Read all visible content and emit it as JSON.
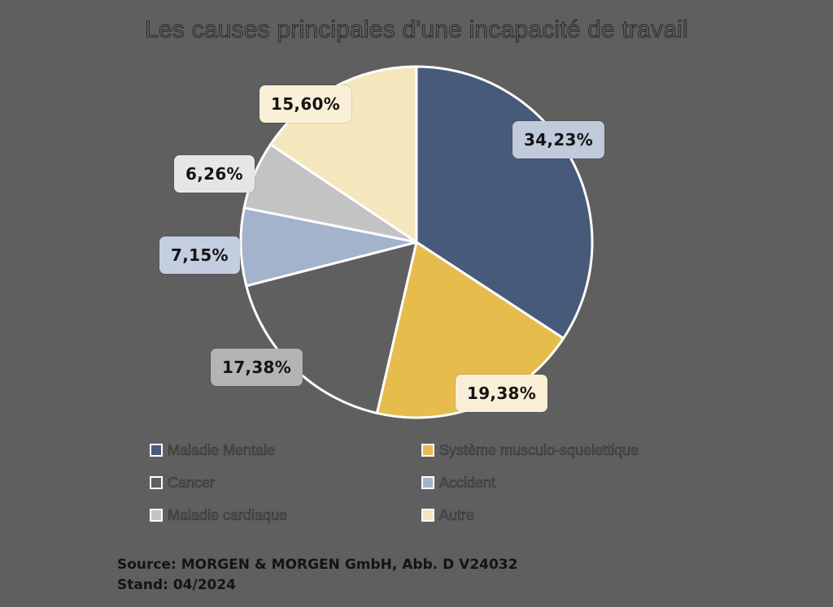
{
  "chart_data": {
    "type": "pie",
    "title": "Les causes principales d'une incapacité de travail",
    "categories": [
      "Maladie Mentale",
      "Système musculo-squelettique",
      "Cancer",
      "Accident",
      "Maladie cardiaque",
      "Autre"
    ],
    "values": [
      34.23,
      19.38,
      17.38,
      7.15,
      6.26,
      15.6
    ],
    "value_labels": [
      "34,23%",
      "19,38%",
      "17,38%",
      "7,15%",
      "6,26%",
      "15,60%"
    ],
    "colors": [
      "#475a7a",
      "#e6bd4c",
      "#5f5f5f",
      "#a3b3cc",
      "#c3c3c3",
      "#f5e6bd"
    ],
    "label_box_colors": [
      "#c0cadb",
      "#faefd6",
      "#b4b4b4",
      "#c3cee0",
      "#e6e6e6",
      "#faf0d8"
    ],
    "start_angle_deg": 90,
    "direction": "clockwise",
    "legend_position": "bottom",
    "xlabel": "",
    "ylabel": ""
  },
  "title": "Les causes principales d'une incapacité de travail",
  "legend": {
    "items": [
      {
        "label": "Maladie Mentale",
        "color": "#475a7a"
      },
      {
        "label": "Système musculo-squelettique",
        "color": "#e6bd4c"
      },
      {
        "label": "Cancer",
        "color": "#5f5f5f"
      },
      {
        "label": "Accident",
        "color": "#a3b3cc"
      },
      {
        "label": "Maladie cardiaque",
        "color": "#c3c3c3"
      },
      {
        "label": "Autre",
        "color": "#f5e6bd"
      }
    ]
  },
  "source": {
    "line1": "Source: MORGEN & MORGEN GmbH, Abb. D V24032",
    "line2": "Stand: 04/2024"
  }
}
